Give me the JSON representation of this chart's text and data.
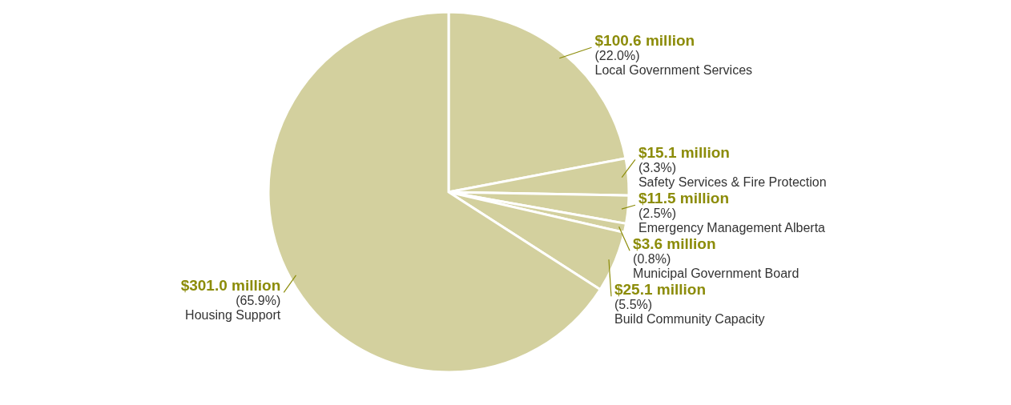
{
  "chart_data": {
    "type": "pie",
    "categories": [
      "Local Government Services",
      "Safety Services & Fire Protection",
      "Emergency Management Alberta",
      "Municipal Government Board",
      "Build Community Capacity",
      "Housing Support"
    ],
    "values": [
      22.0,
      3.3,
      2.5,
      0.8,
      5.5,
      65.9
    ],
    "colors": [
      "#d3d09e",
      "#d3d09e",
      "#d3d09e",
      "#d3d09e",
      "#d3d09e",
      "#d3d09e"
    ],
    "value_labels": [
      "$100.6 million\n(22.0%)",
      "$15.1 million\n(3.3%)",
      "$11.5 million\n(2.5%)",
      "$3.6 million\n(0.8%)",
      "$25.1 million\n(5.5%)",
      "$301.0 million\n(65.9%)"
    ]
  }
}
